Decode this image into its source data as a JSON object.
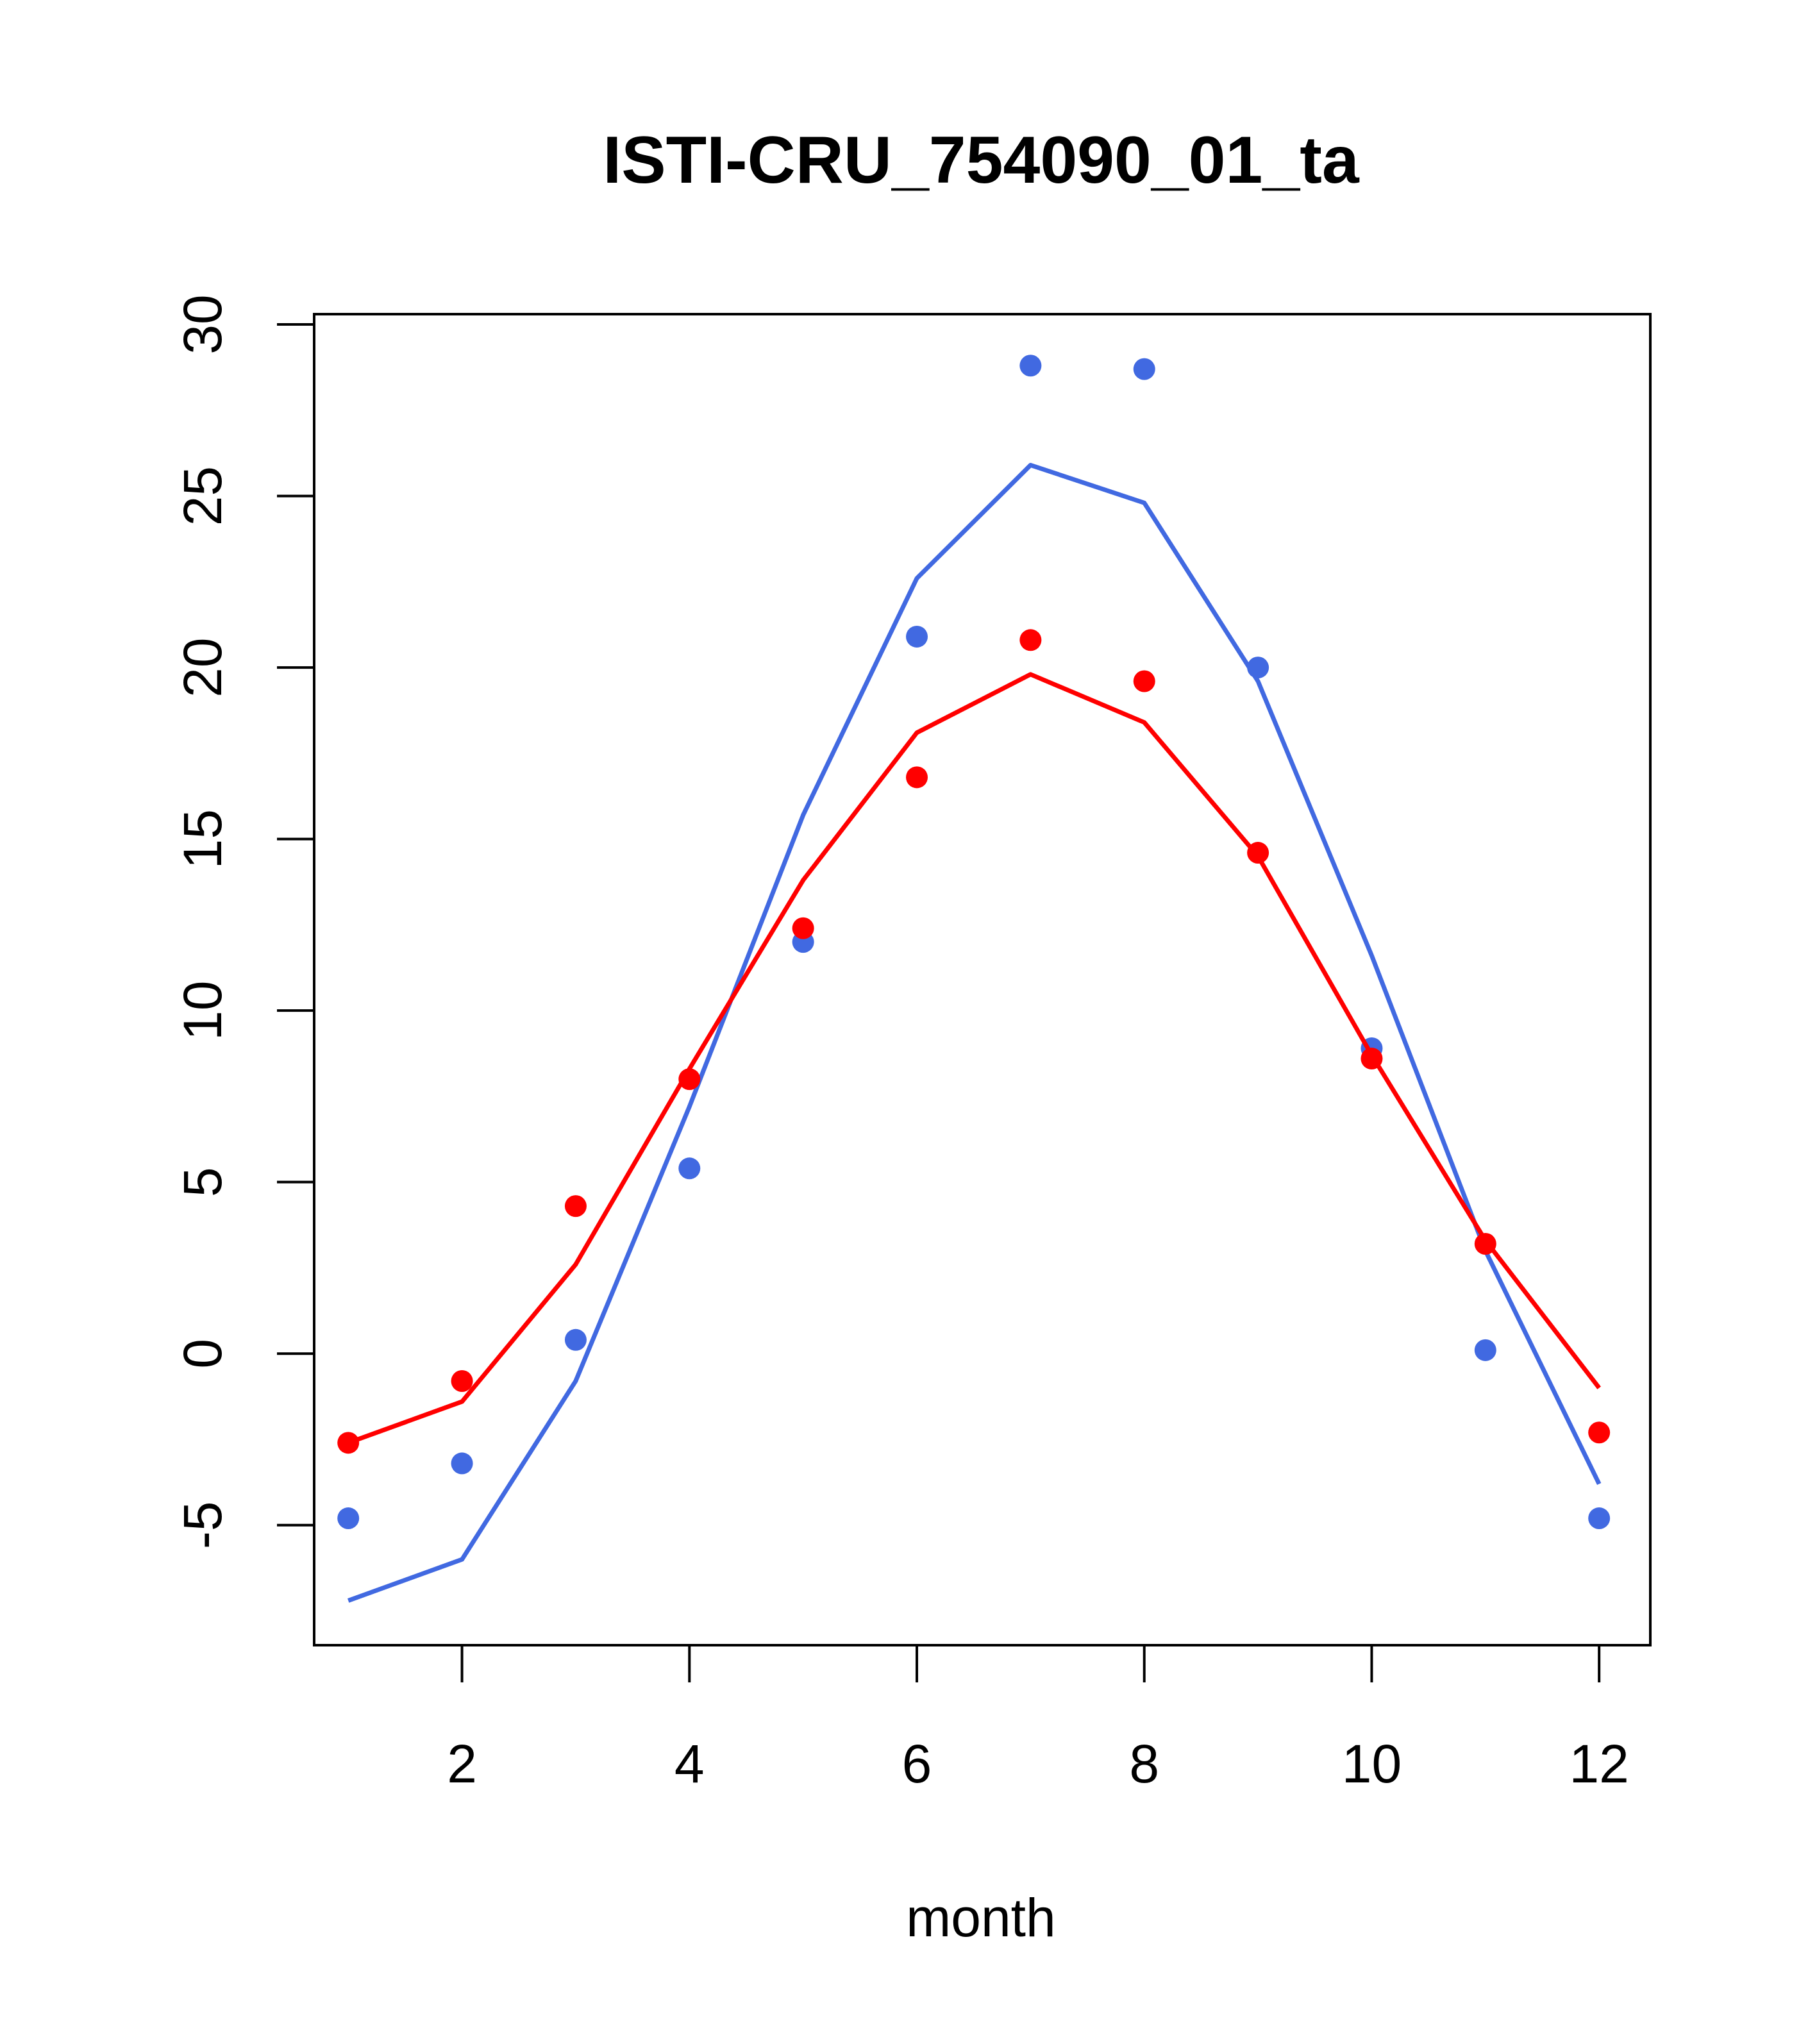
{
  "chart_data": {
    "type": "line",
    "title": "ISTI-CRU_754090_01_ta",
    "xlabel": "month",
    "ylabel": "",
    "xlim": [
      0.7,
      12.45
    ],
    "ylim": [
      -8.5,
      30.3
    ],
    "x_ticks": [
      2,
      4,
      6,
      8,
      10,
      12
    ],
    "y_ticks": [
      -5,
      0,
      5,
      10,
      15,
      20,
      25,
      30
    ],
    "grid": false,
    "legend": "none",
    "x": [
      1,
      2,
      3,
      4,
      5,
      6,
      7,
      8,
      9,
      10,
      11,
      12
    ],
    "series": [
      {
        "color": "#4169E1",
        "points": [
          -4.8,
          -3.2,
          0.4,
          5.4,
          12.0,
          20.9,
          28.8,
          28.7,
          20.0,
          8.9,
          0.1,
          -4.8
        ],
        "line": [
          -7.2,
          -6.0,
          -0.8,
          7.2,
          15.7,
          22.6,
          25.9,
          24.8,
          19.6,
          11.6,
          3.0,
          -3.8
        ]
      },
      {
        "color": "#FF0000",
        "points": [
          -2.6,
          -0.8,
          4.3,
          8.0,
          12.4,
          16.8,
          20.8,
          19.6,
          14.6,
          8.6,
          3.2,
          -2.3
        ],
        "line": [
          -2.6,
          -1.4,
          2.6,
          8.3,
          13.8,
          18.1,
          19.8,
          18.4,
          14.5,
          8.7,
          3.3,
          -1.0
        ]
      }
    ]
  }
}
